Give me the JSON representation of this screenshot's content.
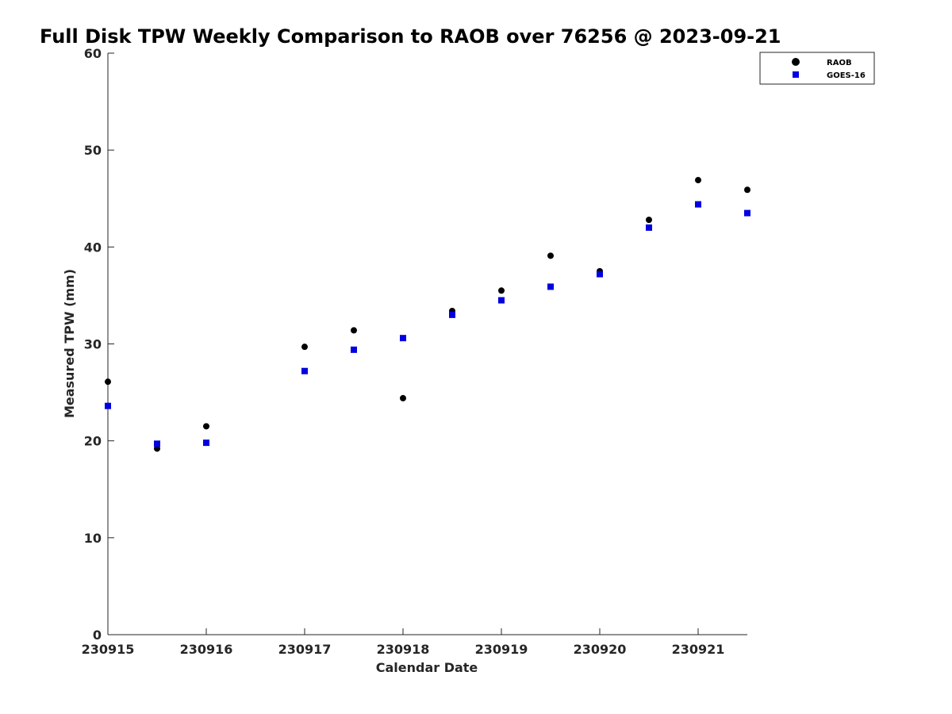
{
  "chart_data": {
    "type": "scatter",
    "title": "Full Disk TPW Weekly Comparison to RAOB over 76256 @ 2023-09-21",
    "xlabel": "Calendar Date",
    "ylabel": "Measured TPW (mm)",
    "xlim": [
      0,
      6.5
    ],
    "ylim": [
      0,
      60
    ],
    "xticks": [
      0,
      1,
      2,
      3,
      4,
      5,
      6
    ],
    "xtick_labels": [
      "230915",
      "230916",
      "230917",
      "230918",
      "230919",
      "230920",
      "230921"
    ],
    "yticks": [
      0,
      10,
      20,
      30,
      40,
      50,
      60
    ],
    "ytick_labels": [
      "0",
      "10",
      "20",
      "30",
      "40",
      "50",
      "60"
    ],
    "grid": false,
    "legend_position": "top-right",
    "series": [
      {
        "name": "RAOB",
        "marker": "circle",
        "color": "#000000",
        "points": [
          [
            0,
            26.1
          ],
          [
            0.5,
            19.2
          ],
          [
            1,
            21.5
          ],
          [
            2,
            29.7
          ],
          [
            2.5,
            31.4
          ],
          [
            3,
            24.4
          ],
          [
            3.5,
            33.4
          ],
          [
            4,
            35.5
          ],
          [
            4.5,
            39.1
          ],
          [
            5,
            37.5
          ],
          [
            5.5,
            42.8
          ],
          [
            6,
            46.9
          ],
          [
            6.5,
            45.9
          ]
        ]
      },
      {
        "name": "GOES-16",
        "marker": "square",
        "color": "#0000e0",
        "points": [
          [
            0,
            23.6
          ],
          [
            0.5,
            19.7
          ],
          [
            1,
            19.8
          ],
          [
            2,
            27.2
          ],
          [
            2.5,
            29.4
          ],
          [
            3,
            30.6
          ],
          [
            3.5,
            33.0
          ],
          [
            4,
            34.5
          ],
          [
            4.5,
            35.9
          ],
          [
            5,
            37.2
          ],
          [
            5.5,
            42.0
          ],
          [
            6,
            44.4
          ],
          [
            6.5,
            43.5
          ]
        ]
      }
    ]
  }
}
